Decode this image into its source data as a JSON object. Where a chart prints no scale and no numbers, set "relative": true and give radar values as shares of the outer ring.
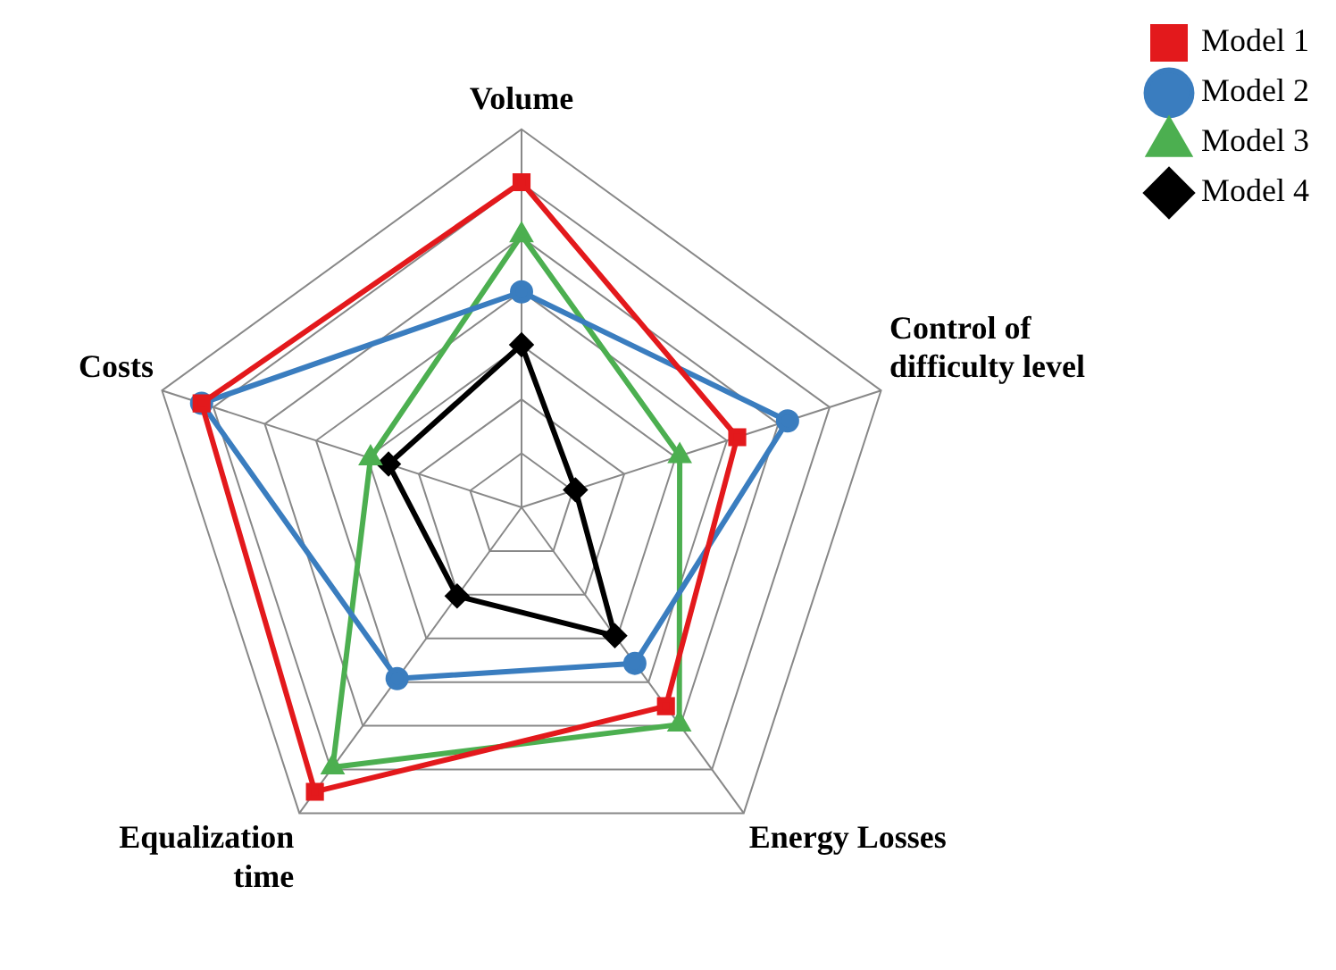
{
  "chart_data": {
    "type": "radar",
    "relative": true,
    "categories": [
      "Volume",
      "Control of difficulty level",
      "Energy Losses",
      "Equalization time",
      "Costs"
    ],
    "series": [
      {
        "name": "Model 1",
        "color": "#e3191c",
        "marker": "square",
        "values": [
          0.86,
          0.6,
          0.65,
          0.93,
          0.89
        ]
      },
      {
        "name": "Model 2",
        "color": "#3a7dbf",
        "marker": "circle",
        "values": [
          0.57,
          0.74,
          0.51,
          0.56,
          0.89
        ]
      },
      {
        "name": "Model 3",
        "color": "#4caf50",
        "marker": "triangle",
        "values": [
          0.72,
          0.44,
          0.71,
          0.85,
          0.42
        ]
      },
      {
        "name": "Model 4",
        "color": "#000000",
        "marker": "diamond",
        "values": [
          0.43,
          0.15,
          0.42,
          0.29,
          0.37
        ]
      }
    ],
    "grid": true,
    "legend": "top right",
    "line_style": "solid"
  }
}
